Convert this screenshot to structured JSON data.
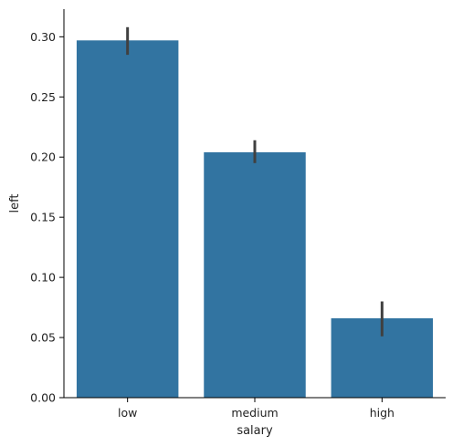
{
  "chart_data": {
    "type": "bar",
    "title": "",
    "xlabel": "salary",
    "ylabel": "left",
    "categories": [
      "low",
      "medium",
      "high"
    ],
    "values": [
      0.297,
      0.204,
      0.066
    ],
    "error_bars": [
      {
        "low": 0.285,
        "high": 0.308
      },
      {
        "low": 0.195,
        "high": 0.214
      },
      {
        "low": 0.051,
        "high": 0.08
      }
    ],
    "ylim": [
      0,
      0.323
    ],
    "yticks": [
      0.0,
      0.05,
      0.1,
      0.15,
      0.2,
      0.25,
      0.3
    ],
    "ytick_labels": [
      "0.00",
      "0.05",
      "0.10",
      "0.15",
      "0.20",
      "0.25",
      "0.30"
    ],
    "grid": false,
    "legend": "none",
    "colors": {
      "bar": "#3274a1",
      "error_bar": "#404040",
      "axis": "#000000",
      "text": "#222222"
    }
  }
}
